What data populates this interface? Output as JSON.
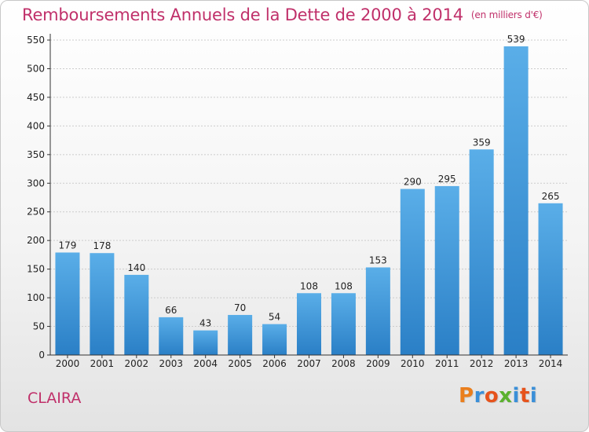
{
  "header": {
    "title": "Remboursements Annuels de la Dette de 2000 à 2014",
    "subtitle": "(en milliers d'€)"
  },
  "footer": {
    "place": "CLAIRA",
    "logo": [
      "P",
      "r",
      "o",
      "x",
      "i",
      "t",
      "i"
    ]
  },
  "colors": {
    "accent": "#c0306a",
    "bar_top": "#5aaee8",
    "bar_bottom": "#2a7fc6",
    "logo_letters": [
      "#ea7e1c",
      "#3a8fd8",
      "#e6531c",
      "#5bb12e",
      "#3a8fd8",
      "#e6531c",
      "#3a8fd8"
    ]
  },
  "chart_data": {
    "type": "bar",
    "title": "Remboursements Annuels de la Dette de 2000 à 2014",
    "subtitle": "(en milliers d'€)",
    "categories": [
      "2000",
      "2001",
      "2002",
      "2003",
      "2004",
      "2005",
      "2006",
      "2007",
      "2008",
      "2009",
      "2010",
      "2011",
      "2012",
      "2013",
      "2014"
    ],
    "values": [
      179,
      178,
      140,
      66,
      43,
      70,
      54,
      108,
      108,
      153,
      290,
      295,
      359,
      539,
      265
    ],
    "data_labels": [
      "179",
      "178",
      "140",
      "66",
      "43",
      "70",
      "54",
      "108",
      "108",
      "153",
      "290",
      "295",
      "359",
      "539",
      "265"
    ],
    "y_ticks": [
      "0",
      "50",
      "100",
      "150",
      "200",
      "250",
      "300",
      "350",
      "400",
      "450",
      "500",
      "550"
    ],
    "ylim": [
      0,
      550
    ],
    "grid": "horizontal dashed",
    "legend": "none"
  }
}
